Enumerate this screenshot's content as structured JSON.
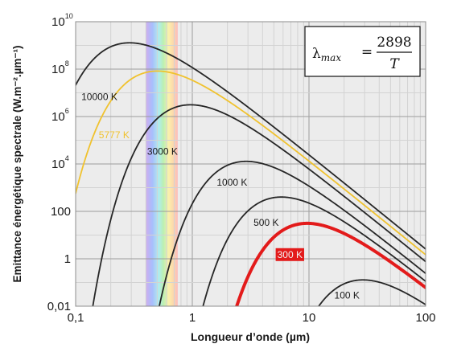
{
  "chart_data": {
    "type": "line",
    "title": "",
    "xlabel": "Longueur d’onde (µm)",
    "ylabel": "Emittance énergétique spectrale (W.m⁻².µm⁻¹)",
    "x_scale": "log",
    "y_scale": "log",
    "xlim": [
      0.1,
      100
    ],
    "ylim": [
      0.01,
      10000000000
    ],
    "grid": true,
    "x_ticks": [
      {
        "value": 0.1,
        "label": "0,1"
      },
      {
        "value": 1,
        "label": "1"
      },
      {
        "value": 10,
        "label": "10"
      },
      {
        "value": 100,
        "label": "100"
      }
    ],
    "y_ticks": [
      {
        "value": 0.01,
        "label": "0,01",
        "base": "",
        "exp": ""
      },
      {
        "value": 1,
        "label": "1",
        "base": "",
        "exp": ""
      },
      {
        "value": 100,
        "label": "100",
        "base": "",
        "exp": ""
      },
      {
        "value": 10000,
        "label": "",
        "base": "10",
        "exp": "4"
      },
      {
        "value": 1000000,
        "label": "",
        "base": "10",
        "exp": "6"
      },
      {
        "value": 100000000,
        "label": "",
        "base": "10",
        "exp": "8"
      },
      {
        "value": 10000000000,
        "label": "",
        "base": "10",
        "exp": "10"
      }
    ],
    "visible_band_um": [
      0.4,
      0.75
    ],
    "series": [
      {
        "name": "10000 K",
        "temperature_K": 10000,
        "color": "#262626",
        "width": 1.8,
        "label_x": 0.112,
        "label_y": 5000000
      },
      {
        "name": "5777 K",
        "temperature_K": 5777,
        "color": "#f0c22e",
        "width": 1.8,
        "label_x": 0.158,
        "label_y": 120000
      },
      {
        "name": "3000 K",
        "temperature_K": 3000,
        "color": "#262626",
        "width": 1.8,
        "label_x": 0.41,
        "label_y": 25000
      },
      {
        "name": "1000 K",
        "temperature_K": 1000,
        "color": "#262626",
        "width": 1.8,
        "label_x": 1.62,
        "label_y": 1200
      },
      {
        "name": "500 K",
        "temperature_K": 500,
        "color": "#262626",
        "width": 1.8,
        "label_x": 3.35,
        "label_y": 25
      },
      {
        "name": "300 K",
        "temperature_K": 300,
        "color": "#e31b1b",
        "width": 4,
        "label_x": 5.35,
        "label_y": 1.1
      },
      {
        "name": "100 K",
        "temperature_K": 100,
        "color": "#262626",
        "width": 1.8,
        "label_x": 16.5,
        "label_y": 0.021
      }
    ],
    "annotation": {
      "lhs": "λ",
      "sub": "max",
      "eq": "=",
      "num": "2898",
      "den": "T"
    }
  },
  "colors": {
    "background": "#ffffff",
    "plot_background": "#ececec",
    "grid_minor": "#d3d3d3",
    "grid_major": "#9d9d9d"
  }
}
